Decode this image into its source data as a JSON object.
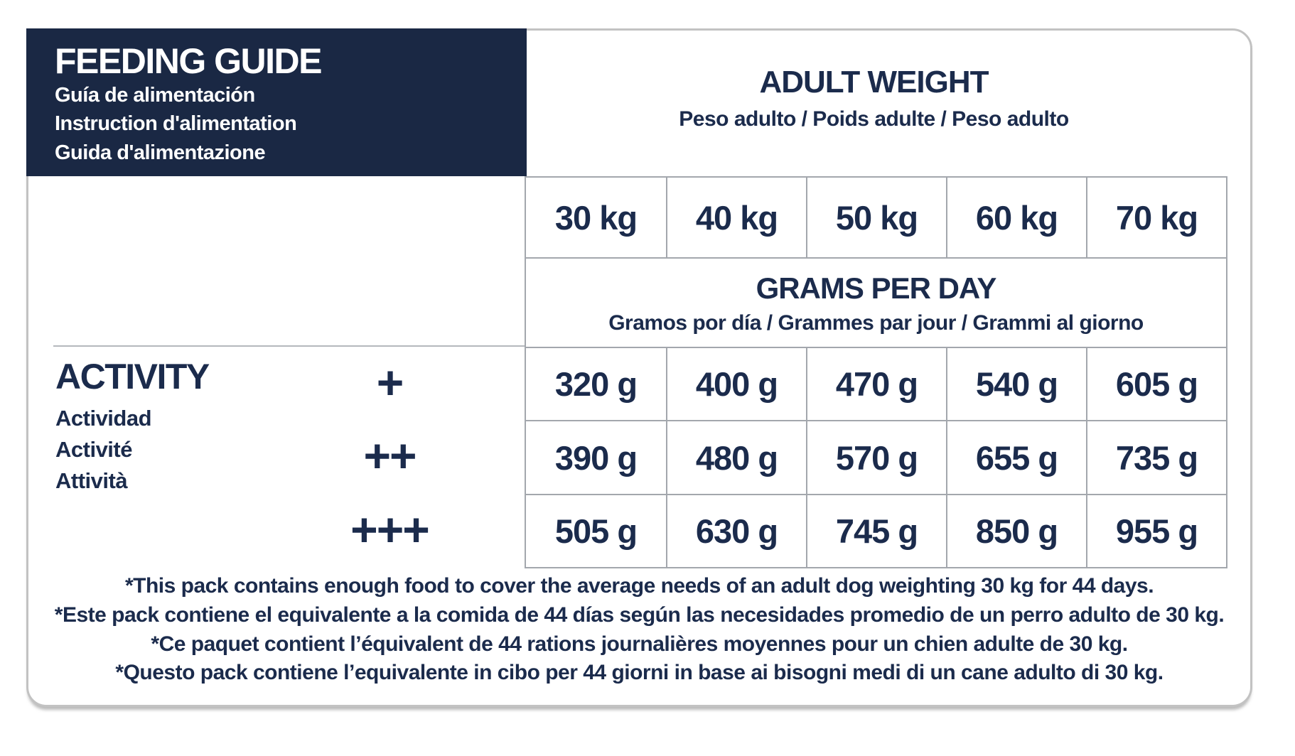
{
  "colors": {
    "navy_block": "#1a2844",
    "text_navy": "#1b2b4c",
    "grid_border": "#a3a7ad",
    "card_border": "#c2c2c2",
    "background": "#ffffff"
  },
  "feeding_guide": {
    "title": "FEEDING GUIDE",
    "subtitles": [
      "Guía de alimentación",
      "Instruction d'alimentation",
      "Guida d'alimentazione"
    ]
  },
  "adult_weight": {
    "title": "ADULT WEIGHT",
    "subtitle": "Peso adulto / Poids adulte / Peso adulto"
  },
  "grams_per_day": {
    "title": "GRAMS PER DAY",
    "subtitle": "Gramos por día / Grammes par jour / Grammi al giorno"
  },
  "activity": {
    "title": "ACTIVITY",
    "subtitles": [
      "Actividad",
      "Activité",
      "Attività"
    ]
  },
  "chart_data": {
    "type": "table",
    "columns": [
      "30 kg",
      "40 kg",
      "50 kg",
      "60 kg",
      "70 kg"
    ],
    "rows": [
      {
        "activity": "+",
        "values": [
          "320 g",
          "400 g",
          "470 g",
          "540 g",
          "605 g"
        ]
      },
      {
        "activity": "++",
        "values": [
          "390 g",
          "480 g",
          "570 g",
          "655 g",
          "735 g"
        ]
      },
      {
        "activity": "+++",
        "values": [
          "505 g",
          "630 g",
          "745 g",
          "850 g",
          "955 g"
        ]
      }
    ]
  },
  "footnotes": [
    "*This pack contains enough food to cover the average needs of an adult dog weighting 30 kg for 44 days.",
    "*Este pack contiene el equivalente a la comida de 44 días según las necesidades promedio de un perro adulto de 30 kg.",
    "*Ce paquet contient l’équivalent de 44 rations journalières moyennes pour un chien adulte de 30 kg.",
    "*Questo pack contiene l’equivalente in cibo per 44 giorni in base ai bisogni medi di un cane adulto di 30 kg."
  ]
}
